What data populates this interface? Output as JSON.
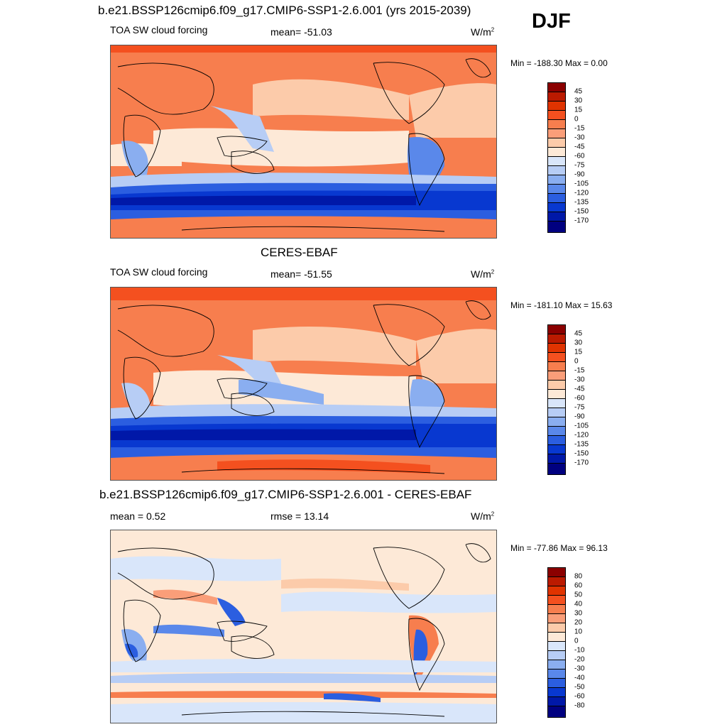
{
  "season": "DJF",
  "panels": [
    {
      "title": "b.e21.BSSP126cmip6.f09_g17.CMIP6-SSP1-2.6.001 (yrs 2015-2039)",
      "left_label": "TOA SW cloud forcing",
      "center_label": "mean= -51.03",
      "units": "W/m",
      "units_sup": "2",
      "minmax": "Min = -188.30 Max =   0.00",
      "levels": [
        "45",
        "30",
        "15",
        "0",
        "-15",
        "-30",
        "-45",
        "-60",
        "-75",
        "-90",
        "-105",
        "-120",
        "-135",
        "-150",
        "-170"
      ],
      "colors": [
        "#8b0000",
        "#bb1a00",
        "#e03300",
        "#f4501f",
        "#f77e4e",
        "#fa9e79",
        "#fccbaa",
        "#fde9d7",
        "#d9e6fa",
        "#b7cdf5",
        "#8aaef0",
        "#5a88ea",
        "#2b5ee0",
        "#0838d0",
        "#0018a8",
        "#000080"
      ]
    },
    {
      "title": "CERES-EBAF",
      "left_label": "TOA SW cloud forcing",
      "center_label": "mean= -51.55",
      "units": "W/m",
      "units_sup": "2",
      "minmax": "Min = -181.10 Max =  15.63",
      "levels": [
        "45",
        "30",
        "15",
        "0",
        "-15",
        "-30",
        "-45",
        "-60",
        "-75",
        "-90",
        "-105",
        "-120",
        "-135",
        "-150",
        "-170"
      ],
      "colors": [
        "#8b0000",
        "#bb1a00",
        "#e03300",
        "#f4501f",
        "#f77e4e",
        "#fa9e79",
        "#fccbaa",
        "#fde9d7",
        "#d9e6fa",
        "#b7cdf5",
        "#8aaef0",
        "#5a88ea",
        "#2b5ee0",
        "#0838d0",
        "#0018a8",
        "#000080"
      ]
    },
    {
      "title": "b.e21.BSSP126cmip6.f09_g17.CMIP6-SSP1-2.6.001 - CERES-EBAF",
      "left_label": "mean =   0.52",
      "center_label": "rmse =  13.14",
      "units": "W/m",
      "units_sup": "2",
      "minmax": "Min = -77.86 Max =  96.13",
      "levels": [
        "80",
        "60",
        "50",
        "40",
        "30",
        "20",
        "10",
        "0",
        "-10",
        "-20",
        "-30",
        "-40",
        "-50",
        "-60",
        "-80"
      ],
      "colors": [
        "#8b0000",
        "#bb1a00",
        "#e03300",
        "#f4501f",
        "#f77e4e",
        "#fa9e79",
        "#fccbaa",
        "#fde9d7",
        "#d9e6fa",
        "#b7cdf5",
        "#8aaef0",
        "#5a88ea",
        "#2b5ee0",
        "#0838d0",
        "#0018a8",
        "#000080"
      ]
    }
  ]
}
